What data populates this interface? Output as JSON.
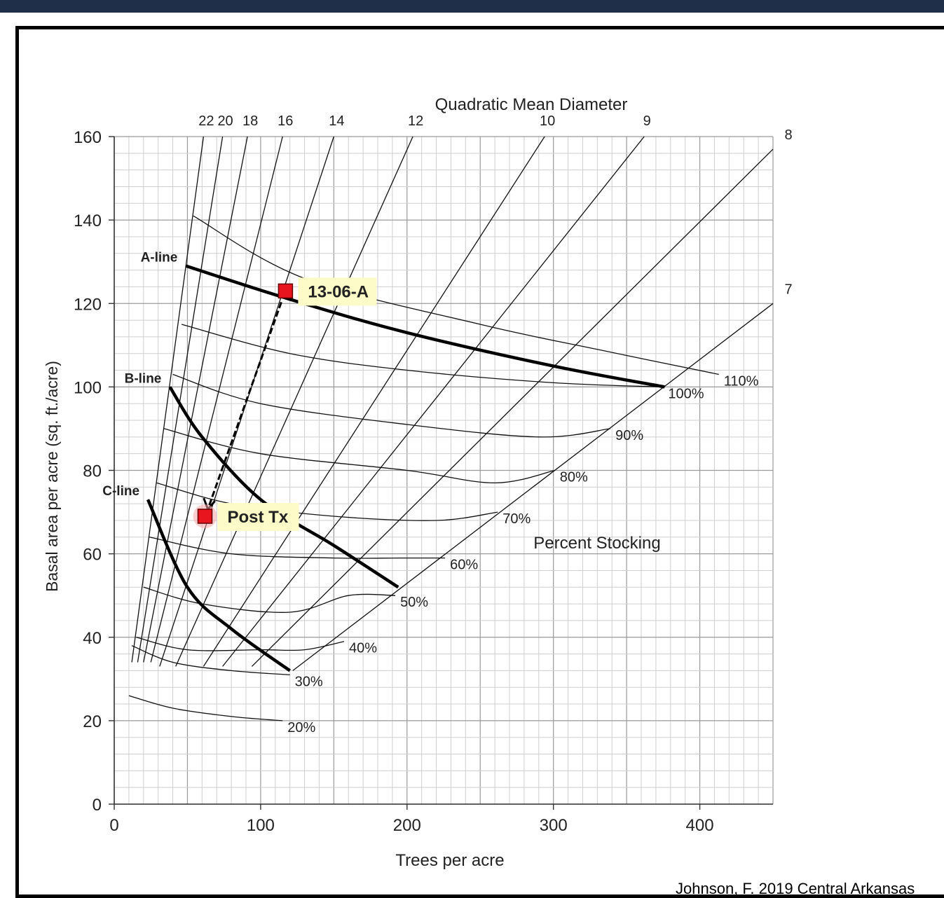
{
  "chart_data": {
    "type": "line",
    "title": "",
    "top_axis_title": "Quadratic Mean Diameter",
    "xlabel": "Trees  per acre",
    "ylabel": "Basal area per acre (sq. ft./acre)",
    "xlim": [
      0,
      450
    ],
    "ylim": [
      0,
      160
    ],
    "x_ticks": [
      0,
      100,
      200,
      300,
      400
    ],
    "y_ticks": [
      0,
      20,
      40,
      60,
      80,
      100,
      120,
      140,
      160
    ],
    "grid": true,
    "qmd_lines": [
      {
        "label": "22",
        "points": [
          [
            12,
            34
          ],
          [
            61,
            160
          ]
        ]
      },
      {
        "label": "20",
        "points": [
          [
            16,
            34
          ],
          [
            74,
            160
          ]
        ]
      },
      {
        "label": "18",
        "points": [
          [
            20,
            34
          ],
          [
            91,
            160
          ]
        ]
      },
      {
        "label": "16",
        "points": [
          [
            25,
            34
          ],
          [
            115,
            160
          ]
        ]
      },
      {
        "label": "14",
        "points": [
          [
            31,
            33
          ],
          [
            150,
            160
          ]
        ]
      },
      {
        "label": "12",
        "points": [
          [
            42,
            33
          ],
          [
            204,
            160
          ]
        ]
      },
      {
        "label": "10",
        "points": [
          [
            61,
            33
          ],
          [
            294,
            160
          ]
        ]
      },
      {
        "label": "9",
        "points": [
          [
            74,
            33
          ],
          [
            362,
            160
          ]
        ]
      },
      {
        "label": "8",
        "points": [
          [
            94,
            33
          ],
          [
            450,
            157
          ]
        ]
      },
      {
        "label": "7",
        "points": [
          [
            122,
            32
          ],
          [
            450,
            120
          ]
        ]
      }
    ],
    "stocking_curves": [
      {
        "label": "110%",
        "points": [
          [
            54,
            141
          ],
          [
            130,
            126
          ],
          [
            250,
            115
          ],
          [
            330,
            109
          ],
          [
            413,
            103
          ]
        ]
      },
      {
        "label": "100%",
        "points": [
          [
            46,
            115
          ],
          [
            120,
            108
          ],
          [
            200,
            104
          ],
          [
            300,
            101
          ],
          [
            375,
            100
          ]
        ]
      },
      {
        "label": "90%",
        "points": [
          [
            40,
            103
          ],
          [
            100,
            96
          ],
          [
            200,
            91
          ],
          [
            290,
            88
          ],
          [
            339,
            90
          ]
        ]
      },
      {
        "label": "80%",
        "points": [
          [
            34,
            90
          ],
          [
            100,
            84
          ],
          [
            200,
            80
          ],
          [
            260,
            77
          ],
          [
            301,
            80
          ]
        ]
      },
      {
        "label": "70%",
        "points": [
          [
            29,
            77
          ],
          [
            80,
            72
          ],
          [
            150,
            69
          ],
          [
            220,
            68
          ],
          [
            262,
            70
          ]
        ]
      },
      {
        "label": "60%",
        "points": [
          [
            24,
            64
          ],
          [
            80,
            60
          ],
          [
            150,
            59
          ],
          [
            196,
            59
          ],
          [
            226,
            59
          ]
        ]
      },
      {
        "label": "50%",
        "points": [
          [
            20,
            52
          ],
          [
            60,
            48
          ],
          [
            120,
            46
          ],
          [
            160,
            50
          ],
          [
            192,
            50
          ]
        ]
      },
      {
        "label": "40%",
        "points": [
          [
            15,
            40
          ],
          [
            50,
            37
          ],
          [
            100,
            37
          ],
          [
            130,
            37
          ],
          [
            157,
            39
          ]
        ]
      },
      {
        "label": "30%",
        "points": [
          [
            12,
            38
          ],
          [
            40,
            34
          ],
          [
            80,
            32
          ],
          [
            120,
            31
          ]
        ]
      },
      {
        "label": "20%",
        "points": [
          [
            10,
            26
          ],
          [
            40,
            23
          ],
          [
            80,
            21
          ],
          [
            115,
            20
          ]
        ]
      }
    ],
    "guide_lines": [
      {
        "label": "A-line",
        "points": [
          [
            49,
            129
          ],
          [
            120,
            121
          ],
          [
            200,
            113
          ],
          [
            300,
            105
          ],
          [
            376,
            100
          ]
        ]
      },
      {
        "label": "B-line",
        "points": [
          [
            38,
            100
          ],
          [
            60,
            88
          ],
          [
            100,
            73
          ],
          [
            150,
            62
          ],
          [
            194,
            52
          ]
        ]
      },
      {
        "label": "C-line",
        "points": [
          [
            23,
            73
          ],
          [
            50,
            52
          ],
          [
            80,
            42
          ],
          [
            120,
            32
          ]
        ]
      }
    ],
    "annotations": [
      {
        "label": "13-06-A",
        "x": 117,
        "y": 123
      },
      {
        "label": "Post Tx",
        "x": 62,
        "y": 69
      }
    ],
    "arrow": {
      "from": [
        117,
        123
      ],
      "to": [
        64,
        71
      ]
    },
    "stocking_title": "Percent Stocking"
  },
  "credit": "Johnson, F. 2019 Central Arkansas",
  "colors": {
    "marker": "#e8141e",
    "callout": "#fdfbc8",
    "topbar": "#1f2f4a"
  }
}
